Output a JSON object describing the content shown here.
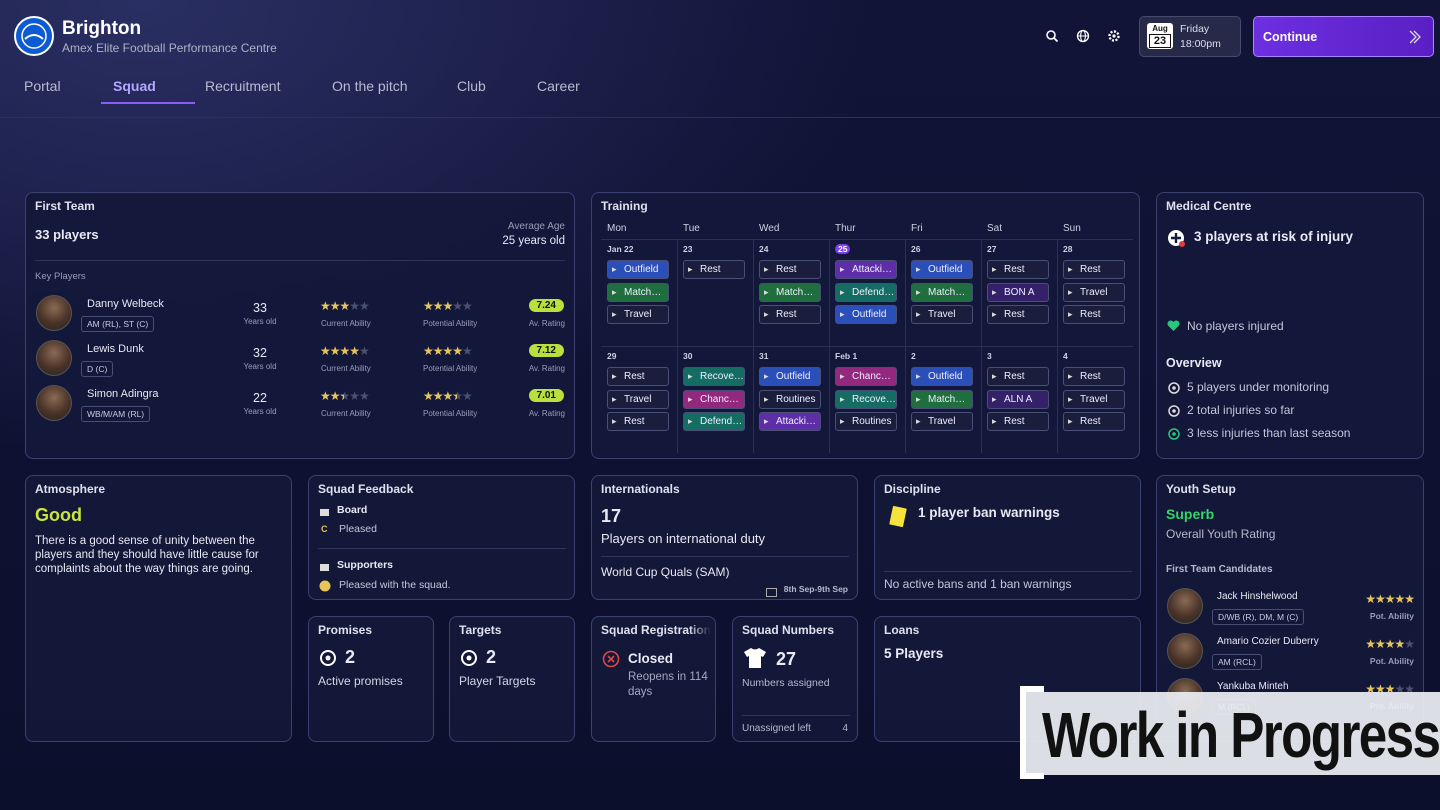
{
  "header": {
    "club": "Brighton",
    "subtitle": "Amex Elite Football Performance Centre",
    "date": {
      "month": "Aug",
      "day": "23",
      "weekday": "Friday",
      "time": "18:00pm"
    },
    "continue": "Continue"
  },
  "nav": {
    "items": [
      "Portal",
      "Squad",
      "Recruitment",
      "On the pitch",
      "Club",
      "Career"
    ],
    "active": 1
  },
  "first_team": {
    "title": "First Team",
    "count": "33 players",
    "average_age_label": "Average Age",
    "average_age": "25 years old",
    "key_players_label": "Key Players",
    "age_label": "Years old",
    "current_label": "Current Ability",
    "potential_label": "Potential Ability",
    "rating_label": "Av. Rating",
    "players": [
      {
        "name": "Danny Welbeck",
        "positions": "AM (RL), ST (C)",
        "age": 33,
        "current": 3,
        "potential": 3,
        "rating": 7.24
      },
      {
        "name": "Lewis Dunk",
        "positions": "D (C)",
        "age": 32,
        "current": 4,
        "potential": 4,
        "rating": 7.12
      },
      {
        "name": "Simon Adingra",
        "positions": "WB/M/AM (RL)",
        "age": 22,
        "current": 2.5,
        "potential": 3.5,
        "rating": 7.01
      }
    ]
  },
  "training": {
    "title": "Training",
    "days": [
      "Mon",
      "Tue",
      "Wed",
      "Thur",
      "Fri",
      "Sat",
      "Sun"
    ],
    "weeks": [
      {
        "dates": [
          "Jan 22",
          "23",
          "24",
          "25",
          "26",
          "27",
          "28"
        ],
        "highlight": 3,
        "sessions": [
          [
            {
              "label": "Outfield",
              "color": "#2b4fb8"
            },
            {
              "label": "Match…",
              "color": "#1f6e3e"
            },
            {
              "label": "Travel",
              "color": "#1a1e3c"
            }
          ],
          [
            {
              "label": "Rest",
              "color": "#1a1e3c"
            }
          ],
          [
            {
              "label": "Rest",
              "color": "#1a1e3c"
            },
            {
              "label": "Match…",
              "color": "#1f6e3e"
            },
            {
              "label": "Rest",
              "color": "#1a1e3c"
            }
          ],
          [
            {
              "label": "Attacki…",
              "color": "#5e2ea8"
            },
            {
              "label": "Defend…",
              "color": "#146c63"
            },
            {
              "label": "Outfield",
              "color": "#2b4fb8"
            }
          ],
          [
            {
              "label": "Outfield",
              "color": "#2b4fb8"
            },
            {
              "label": "Match…",
              "color": "#1f6e3e"
            },
            {
              "label": "Travel",
              "color": "#1a1e3c"
            }
          ],
          [
            {
              "label": "Rest",
              "color": "#1a1e3c"
            },
            {
              "label": "BON A",
              "color": "#35206a"
            },
            {
              "label": "Rest",
              "color": "#1a1e3c"
            }
          ],
          [
            {
              "label": "Rest",
              "color": "#1a1e3c"
            },
            {
              "label": "Travel",
              "color": "#1a1e3c"
            },
            {
              "label": "Rest",
              "color": "#1a1e3c"
            }
          ]
        ]
      },
      {
        "dates": [
          "29",
          "30",
          "31",
          "Feb 1",
          "2",
          "3",
          "4"
        ],
        "sessions": [
          [
            {
              "label": "Rest",
              "color": "#1a1e3c"
            },
            {
              "label": "Travel",
              "color": "#1a1e3c"
            },
            {
              "label": "Rest",
              "color": "#1a1e3c"
            }
          ],
          [
            {
              "label": "Recove…",
              "color": "#146c63"
            },
            {
              "label": "Chanc…",
              "color": "#93287f"
            },
            {
              "label": "Defend…",
              "color": "#146c63"
            }
          ],
          [
            {
              "label": "Outfield",
              "color": "#2b4fb8"
            },
            {
              "label": "Routines",
              "color": "#1a1e3c"
            },
            {
              "label": "Attacki…",
              "color": "#5e2ea8"
            }
          ],
          [
            {
              "label": "Chanc…",
              "color": "#93287f"
            },
            {
              "label": "Recove…",
              "color": "#146c63"
            },
            {
              "label": "Routines",
              "color": "#1a1e3c"
            }
          ],
          [
            {
              "label": "Outfield",
              "color": "#2b4fb8"
            },
            {
              "label": "Match…",
              "color": "#1f6e3e"
            },
            {
              "label": "Travel",
              "color": "#1a1e3c"
            }
          ],
          [
            {
              "label": "Rest",
              "color": "#1a1e3c"
            },
            {
              "label": "ALN A",
              "color": "#35206a"
            },
            {
              "label": "Rest",
              "color": "#1a1e3c"
            }
          ],
          [
            {
              "label": "Rest",
              "color": "#1a1e3c"
            },
            {
              "label": "Travel",
              "color": "#1a1e3c"
            },
            {
              "label": "Rest",
              "color": "#1a1e3c"
            }
          ]
        ]
      }
    ]
  },
  "medical": {
    "title": "Medical Centre",
    "risk": "3 players at risk of injury",
    "injured": "No players injured",
    "overview_title": "Overview",
    "items": [
      "5 players under monitoring",
      "2 total injuries so far",
      "3 less injuries than last season"
    ]
  },
  "atmosphere": {
    "title": "Atmosphere",
    "status": "Good",
    "text": "There is a good sense of unity between the players and they should have little cause for complaints about the way things are going."
  },
  "squad_feedback": {
    "title": "Squad Feedback",
    "board_label": "Board",
    "board_grade": "C",
    "board_text": "Pleased",
    "supporters_label": "Supporters",
    "supporters_text": "Pleased with the squad."
  },
  "internationals": {
    "title": "Internationals",
    "count": 17,
    "label": "Players on international duty",
    "competition": "World Cup Quals (SAM)",
    "dates": "8th Sep-9th Sep"
  },
  "discipline": {
    "title": "Discipline",
    "headline": "1 player ban warnings",
    "footer": "No active bans and 1 ban warnings"
  },
  "youth": {
    "title": "Youth Setup",
    "rating": "Superb",
    "rating_label": "Overall Youth Rating",
    "candidates_label": "First Team Candidates",
    "ability_label": "Pot. Ability",
    "candidates": [
      {
        "name": "Jack Hinshelwood",
        "positions": "D/WB (R), DM, M (C)",
        "stars": 5
      },
      {
        "name": "Amario Cozier Duberry",
        "positions": "AM (RCL)",
        "stars": 4
      },
      {
        "name": "Yankuba Minteh",
        "positions": "M (RCL)",
        "stars": 3
      }
    ]
  },
  "promises": {
    "title": "Promises",
    "count": 2,
    "label": "Active promises"
  },
  "targets": {
    "title": "Targets",
    "count": 2,
    "label": "Player Targets"
  },
  "registration": {
    "title": "Squad Registration",
    "status": "Closed",
    "note": "Reopens in 114 days"
  },
  "squad_numbers": {
    "title": "Squad Numbers",
    "count": 27,
    "label": "Numbers assigned",
    "unassigned_label": "Unassigned left",
    "unassigned": 4
  },
  "loans": {
    "title": "Loans",
    "text": "5 Players"
  },
  "overlay": {
    "text": "Work in Progress"
  }
}
